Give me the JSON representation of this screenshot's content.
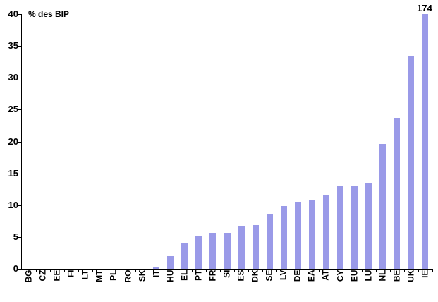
{
  "chart_data": {
    "type": "bar",
    "title": "% des BIP",
    "categories": [
      "BG",
      "CZ",
      "EE",
      "FI",
      "LT",
      "MT",
      "PL",
      "RO",
      "SK",
      "IT",
      "HU",
      "EL",
      "PT",
      "FR",
      "SI",
      "ES",
      "DK",
      "SE",
      "LV",
      "DE",
      "EA",
      "AT",
      "CY",
      "EU",
      "LU",
      "NL",
      "BE",
      "UK",
      "IE"
    ],
    "values": [
      0,
      0,
      0,
      0,
      0,
      0,
      0,
      0,
      0,
      0.3,
      2.0,
      4.0,
      5.2,
      5.6,
      5.7,
      6.8,
      6.9,
      8.6,
      9.9,
      10.5,
      10.9,
      11.6,
      13.0,
      13.0,
      13.5,
      19.6,
      23.7,
      33.3,
      174
    ],
    "annotation": {
      "text": "174",
      "category": "IE"
    },
    "xlabel": "",
    "ylabel": "% des BIP",
    "ylim": [
      0,
      40
    ],
    "yticks": [
      0,
      5,
      10,
      15,
      20,
      25,
      30,
      35,
      40
    ],
    "display_clip_max": 40,
    "bar_color": "#9a9ae8",
    "axis_color": "#000000",
    "grid": false,
    "legend": false
  }
}
